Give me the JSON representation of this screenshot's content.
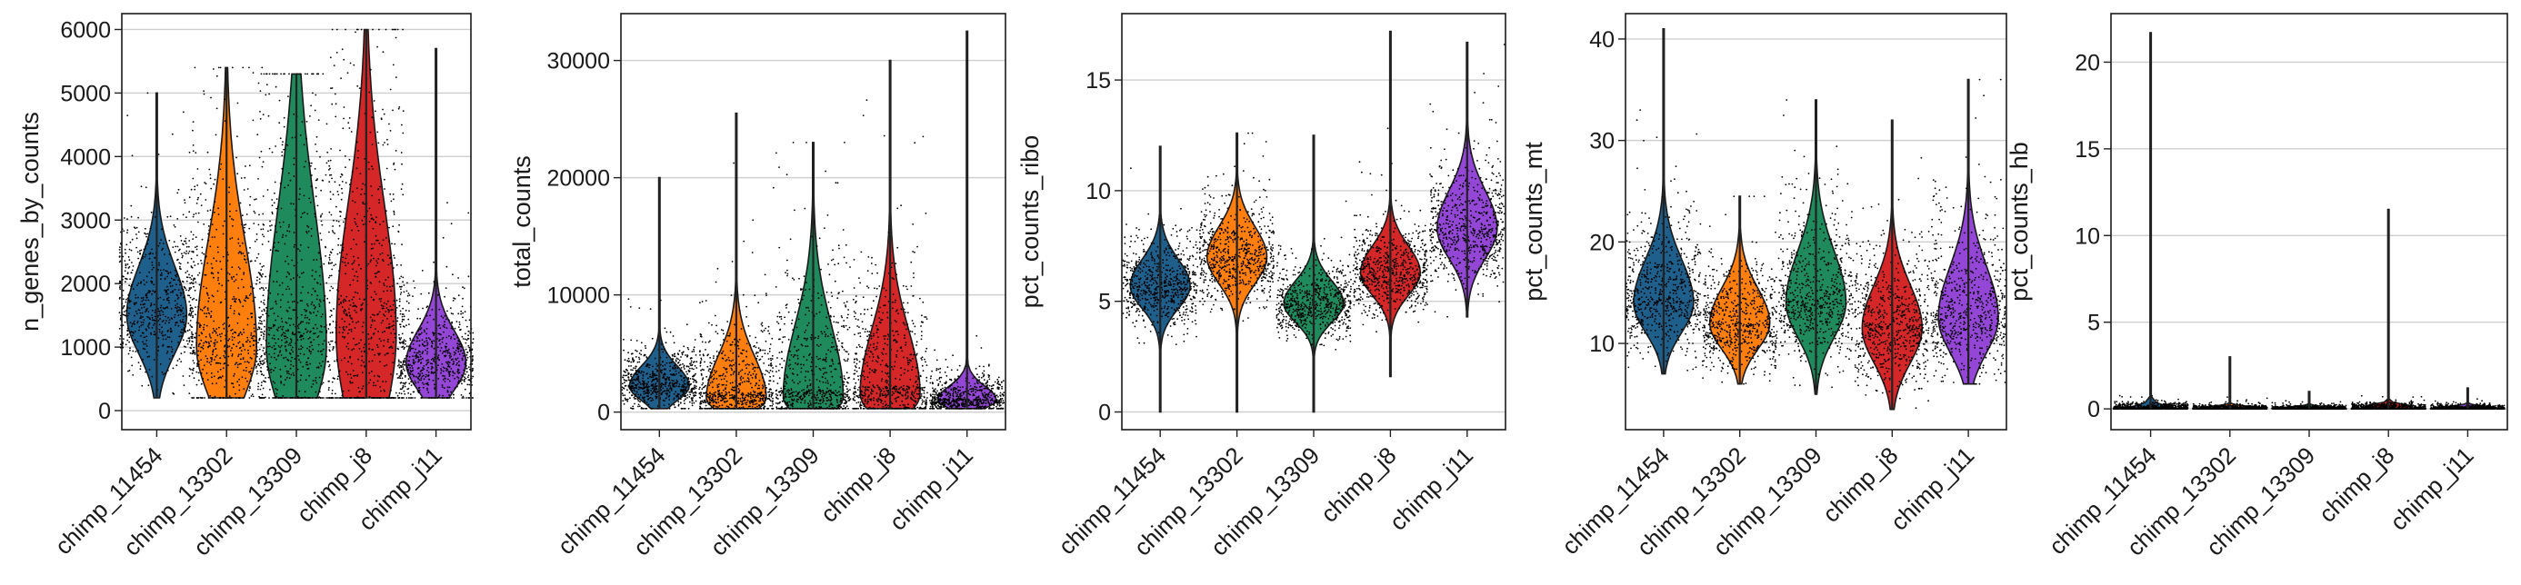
{
  "chart_data": [
    {
      "type": "violin",
      "ylabel": "n_genes_by_counts",
      "categories": [
        "chimp_11454",
        "chimp_13302",
        "chimp_13309",
        "chimp_j8",
        "chimp_j11"
      ],
      "colors": [
        "#1f5f8b",
        "#ff7f0e",
        "#1f8a5b",
        "#d62728",
        "#9447d6"
      ],
      "ylim": [
        -300,
        6250
      ],
      "yticks": [
        0,
        1000,
        2000,
        3000,
        4000,
        5000,
        6000
      ],
      "grid": true,
      "series": [
        {
          "name": "chimp_11454",
          "min": 200,
          "q1": 1300,
          "median": 1650,
          "q3": 2100,
          "max": 5000,
          "peak": 1500
        },
        {
          "name": "chimp_13302",
          "min": 200,
          "q1": 850,
          "median": 1300,
          "q3": 2300,
          "max": 5400,
          "peak": 1000
        },
        {
          "name": "chimp_13309",
          "min": 200,
          "q1": 850,
          "median": 1400,
          "q3": 2700,
          "max": 5300,
          "peak": 1000
        },
        {
          "name": "chimp_j8",
          "min": 200,
          "q1": 1000,
          "median": 1800,
          "q3": 3000,
          "max": 6000,
          "peak": 1200
        },
        {
          "name": "chimp_j11",
          "min": 200,
          "q1": 550,
          "median": 800,
          "q3": 1100,
          "max": 5700,
          "peak": 750
        }
      ]
    },
    {
      "type": "violin",
      "ylabel": "total_counts",
      "categories": [
        "chimp_11454",
        "chimp_13302",
        "chimp_13309",
        "chimp_j8",
        "chimp_j11"
      ],
      "colors": [
        "#1f5f8b",
        "#ff7f0e",
        "#1f8a5b",
        "#d62728",
        "#9447d6"
      ],
      "ylim": [
        -1500,
        34000
      ],
      "yticks": [
        0,
        10000,
        20000,
        30000
      ],
      "grid": true,
      "series": [
        {
          "name": "chimp_11454",
          "min": 300,
          "q1": 1800,
          "median": 2500,
          "q3": 3500,
          "max": 20000,
          "peak": 2200
        },
        {
          "name": "chimp_13302",
          "min": 300,
          "q1": 1000,
          "median": 1700,
          "q3": 3800,
          "max": 25500,
          "peak": 1200
        },
        {
          "name": "chimp_13309",
          "min": 300,
          "q1": 1000,
          "median": 1900,
          "q3": 5500,
          "max": 23000,
          "peak": 1300
        },
        {
          "name": "chimp_j8",
          "min": 300,
          "q1": 1200,
          "median": 2200,
          "q3": 5500,
          "max": 30000,
          "peak": 1500
        },
        {
          "name": "chimp_j11",
          "min": 300,
          "q1": 700,
          "median": 1100,
          "q3": 1800,
          "max": 32500,
          "peak": 1000
        }
      ]
    },
    {
      "type": "violin",
      "ylabel": "pct_counts_ribo",
      "categories": [
        "chimp_11454",
        "chimp_13302",
        "chimp_13309",
        "chimp_j8",
        "chimp_j11"
      ],
      "colors": [
        "#1f5f8b",
        "#ff7f0e",
        "#1f8a5b",
        "#d62728",
        "#9447d6"
      ],
      "ylim": [
        -0.8,
        18
      ],
      "yticks": [
        0,
        5,
        10,
        15
      ],
      "grid": true,
      "series": [
        {
          "name": "chimp_11454",
          "min": 0,
          "q1": 5.1,
          "median": 5.7,
          "q3": 6.4,
          "max": 12,
          "peak": 5.7
        },
        {
          "name": "chimp_13302",
          "min": 0,
          "q1": 6.3,
          "median": 7.0,
          "q3": 7.8,
          "max": 12.6,
          "peak": 7.0
        },
        {
          "name": "chimp_13309",
          "min": 0,
          "q1": 4.4,
          "median": 4.9,
          "q3": 5.5,
          "max": 12.5,
          "peak": 4.9
        },
        {
          "name": "chimp_j8",
          "min": 1.6,
          "q1": 5.7,
          "median": 6.3,
          "q3": 7.0,
          "max": 17.2,
          "peak": 6.3
        },
        {
          "name": "chimp_j11",
          "min": 4.3,
          "q1": 7.5,
          "median": 8.3,
          "q3": 9.3,
          "max": 16.7,
          "peak": 8.3
        }
      ]
    },
    {
      "type": "violin",
      "ylabel": "pct_counts_mt",
      "categories": [
        "chimp_11454",
        "chimp_13302",
        "chimp_13309",
        "chimp_j8",
        "chimp_j11"
      ],
      "colors": [
        "#1f5f8b",
        "#ff7f0e",
        "#1f8a5b",
        "#d62728",
        "#9447d6"
      ],
      "ylim": [
        1.5,
        42.5
      ],
      "yticks": [
        10,
        20,
        30,
        40
      ],
      "grid": true,
      "series": [
        {
          "name": "chimp_11454",
          "min": 7,
          "q1": 12.8,
          "median": 14.5,
          "q3": 17,
          "max": 41,
          "peak": 14
        },
        {
          "name": "chimp_13302",
          "min": 6,
          "q1": 10.5,
          "median": 12.0,
          "q3": 14,
          "max": 24.5,
          "peak": 12
        },
        {
          "name": "chimp_13309",
          "min": 5,
          "q1": 12.5,
          "median": 14.5,
          "q3": 17.5,
          "max": 34,
          "peak": 14
        },
        {
          "name": "chimp_j8",
          "min": 3.5,
          "q1": 10,
          "median": 12.0,
          "q3": 14.5,
          "max": 32,
          "peak": 11.5
        },
        {
          "name": "chimp_j11",
          "min": 6,
          "q1": 11,
          "median": 13.0,
          "q3": 16,
          "max": 36,
          "peak": 12.5
        }
      ]
    },
    {
      "type": "violin",
      "ylabel": "pct_counts_hb",
      "categories": [
        "chimp_11454",
        "chimp_13302",
        "chimp_13309",
        "chimp_j8",
        "chimp_j11"
      ],
      "colors": [
        "#1f5f8b",
        "#ff7f0e",
        "#1f8a5b",
        "#d62728",
        "#9447d6"
      ],
      "ylim": [
        -1.2,
        22.8
      ],
      "yticks": [
        0,
        5,
        10,
        15,
        20
      ],
      "grid": true,
      "series": [
        {
          "name": "chimp_11454",
          "min": 0,
          "q1": 0,
          "median": 0.05,
          "q3": 0.15,
          "max": 21.7,
          "peak": 0.05
        },
        {
          "name": "chimp_13302",
          "min": 0,
          "q1": 0,
          "median": 0.03,
          "q3": 0.1,
          "max": 3.0,
          "peak": 0.03
        },
        {
          "name": "chimp_13309",
          "min": 0,
          "q1": 0,
          "median": 0.02,
          "q3": 0.08,
          "max": 1.0,
          "peak": 0.02
        },
        {
          "name": "chimp_j8",
          "min": 0,
          "q1": 0,
          "median": 0.05,
          "q3": 0.15,
          "max": 11.5,
          "peak": 0.05
        },
        {
          "name": "chimp_j11",
          "min": 0,
          "q1": 0,
          "median": 0.03,
          "q3": 0.1,
          "max": 1.2,
          "peak": 0.03
        }
      ]
    }
  ]
}
